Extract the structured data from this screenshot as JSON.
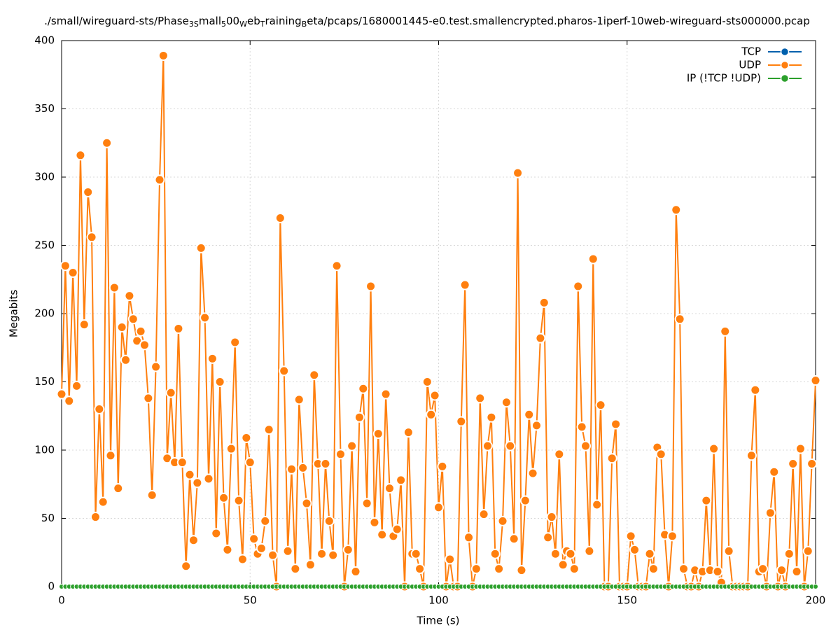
{
  "chart_data": {
    "type": "line",
    "title_parts": [
      "./small/wireguard-sts/Phase",
      "3S",
      "mall",
      "5",
      "00",
      "W",
      "eb",
      "T",
      "raining",
      "B",
      "eta/pcaps/1680001445-e0.test.smallencrypted.pharos-1iperf-10web-wireguard-sts000000.pcap"
    ],
    "xlabel": "Time (s)",
    "ylabel": "Megabits",
    "xlim": [
      0,
      200
    ],
    "xticks": [
      0,
      50,
      100,
      150,
      200
    ],
    "ylim": [
      0,
      400
    ],
    "yticks": [
      0,
      50,
      100,
      150,
      200,
      250,
      300,
      350,
      400
    ],
    "grid": true,
    "legend": "top-right",
    "x": [
      0,
      1,
      2,
      3,
      4,
      5,
      6,
      7,
      8,
      9,
      10,
      11,
      12,
      13,
      14,
      15,
      16,
      17,
      18,
      19,
      20,
      21,
      22,
      23,
      24,
      25,
      26,
      27,
      28,
      29,
      30,
      31,
      32,
      33,
      34,
      35,
      36,
      37,
      38,
      39,
      40,
      41,
      42,
      43,
      44,
      45,
      46,
      47,
      48,
      49,
      50,
      51,
      52,
      53,
      54,
      55,
      56,
      57,
      58,
      59,
      60,
      61,
      62,
      63,
      64,
      65,
      66,
      67,
      68,
      69,
      70,
      71,
      72,
      73,
      74,
      75,
      76,
      77,
      78,
      79,
      80,
      81,
      82,
      83,
      84,
      85,
      86,
      87,
      88,
      89,
      90,
      91,
      92,
      93,
      94,
      95,
      96,
      97,
      98,
      99,
      100,
      101,
      102,
      103,
      104,
      105,
      106,
      107,
      108,
      109,
      110,
      111,
      112,
      113,
      114,
      115,
      116,
      117,
      118,
      119,
      120,
      121,
      122,
      123,
      124,
      125,
      126,
      127,
      128,
      129,
      130,
      131,
      132,
      133,
      134,
      135,
      136,
      137,
      138,
      139,
      140,
      141,
      142,
      143,
      144,
      145,
      146,
      147,
      148,
      149,
      150,
      151,
      152,
      153,
      154,
      155,
      156,
      157,
      158,
      159,
      160,
      161,
      162,
      163,
      164,
      165,
      166,
      167,
      168,
      169,
      170,
      171,
      172,
      173,
      174,
      175,
      176,
      177,
      178,
      179,
      180,
      181,
      182,
      183,
      184,
      185,
      186,
      187,
      188,
      189,
      190,
      191,
      192,
      193,
      194,
      195,
      196,
      197,
      198,
      199,
      200
    ],
    "series": [
      {
        "name": "TCP",
        "color": "#0060ad",
        "values": [
          0,
          0,
          0,
          0,
          0,
          0,
          0,
          0,
          0,
          0,
          0,
          0,
          0,
          0,
          0,
          0,
          0,
          0,
          0,
          0,
          0,
          0,
          0,
          0,
          0,
          0,
          0,
          0,
          0,
          0,
          0,
          0,
          0,
          0,
          0,
          0,
          0,
          0,
          0,
          0,
          0,
          0,
          0,
          0,
          0,
          0,
          0,
          0,
          0,
          0,
          0,
          0,
          0,
          0,
          0,
          0,
          0,
          0,
          0,
          0,
          0,
          0,
          0,
          0,
          0,
          0,
          0,
          0,
          0,
          0,
          0,
          0,
          0,
          0,
          0,
          0,
          0,
          0,
          0,
          0,
          0,
          0,
          0,
          0,
          0,
          0,
          0,
          0,
          0,
          0,
          0,
          0,
          0,
          0,
          0,
          0,
          0,
          0,
          0,
          0,
          0,
          0,
          0,
          0,
          0,
          0,
          0,
          0,
          0,
          0,
          0,
          0,
          0,
          0,
          0,
          0,
          0,
          0,
          0,
          0,
          0,
          0,
          0,
          0,
          0,
          0,
          0,
          0,
          0,
          0,
          0,
          0,
          0,
          0,
          0,
          0,
          0,
          0,
          0,
          0,
          0,
          0,
          0,
          0,
          0,
          0,
          0,
          0,
          0,
          0,
          0,
          0,
          0,
          0,
          0,
          0,
          0,
          0,
          0,
          0,
          0,
          0,
          0,
          0,
          0,
          0,
          0,
          0,
          0,
          0,
          0,
          0,
          0,
          0,
          0,
          0,
          0,
          0,
          0,
          0,
          0,
          0,
          0,
          0,
          0,
          0,
          0,
          0,
          0,
          0,
          0,
          0,
          0,
          0,
          0,
          0,
          0,
          0,
          0,
          0,
          0
        ]
      },
      {
        "name": "UDP",
        "color": "#ff7f0e",
        "values": [
          141,
          235,
          136,
          230,
          147,
          316,
          192,
          289,
          256,
          51,
          130,
          62,
          325,
          96,
          219,
          72,
          190,
          166,
          213,
          196,
          180,
          187,
          177,
          138,
          67,
          161,
          298,
          389,
          94,
          142,
          91,
          189,
          91,
          15,
          82,
          34,
          76,
          248,
          197,
          79,
          167,
          39,
          150,
          65,
          27,
          101,
          179,
          63,
          20,
          109,
          91,
          35,
          24,
          28,
          48,
          115,
          23,
          0,
          270,
          158,
          26,
          86,
          13,
          137,
          87,
          61,
          16,
          155,
          90,
          24,
          90,
          48,
          23,
          235,
          97,
          0,
          27,
          103,
          11,
          124,
          145,
          61,
          220,
          47,
          112,
          38,
          141,
          72,
          37,
          42,
          78,
          0,
          113,
          24,
          24,
          13,
          0,
          150,
          126,
          140,
          58,
          88,
          0,
          20,
          0,
          0,
          121,
          221,
          36,
          0,
          13,
          138,
          53,
          103,
          124,
          24,
          13,
          48,
          135,
          103,
          35,
          303,
          12,
          63,
          126,
          83,
          118,
          182,
          208,
          36,
          51,
          24,
          97,
          16,
          26,
          24,
          13,
          220,
          117,
          103,
          26,
          240,
          60,
          133,
          0,
          0,
          94,
          119,
          0,
          0,
          0,
          37,
          27,
          0,
          0,
          0,
          24,
          13,
          102,
          97,
          38,
          0,
          37,
          276,
          196,
          13,
          0,
          0,
          12,
          0,
          11,
          63,
          12,
          101,
          11,
          3,
          187,
          26,
          0,
          0,
          0,
          0,
          0,
          96,
          144,
          11,
          13,
          0,
          54,
          84,
          0,
          12,
          0,
          24,
          90,
          11,
          101,
          0,
          26,
          90,
          151
        ]
      },
      {
        "name": "IP (!TCP  !UDP)",
        "color": "#2ca02c",
        "values": [
          0,
          0,
          0,
          0,
          0,
          0,
          0,
          0,
          0,
          0,
          0,
          0,
          0,
          0,
          0,
          0,
          0,
          0,
          0,
          0,
          0,
          0,
          0,
          0,
          0,
          0,
          0,
          0,
          0,
          0,
          0,
          0,
          0,
          0,
          0,
          0,
          0,
          0,
          0,
          0,
          0,
          0,
          0,
          0,
          0,
          0,
          0,
          0,
          0,
          0,
          0,
          0,
          0,
          0,
          0,
          0,
          0,
          0,
          0,
          0,
          0,
          0,
          0,
          0,
          0,
          0,
          0,
          0,
          0,
          0,
          0,
          0,
          0,
          0,
          0,
          0,
          0,
          0,
          0,
          0,
          0,
          0,
          0,
          0,
          0,
          0,
          0,
          0,
          0,
          0,
          0,
          0,
          0,
          0,
          0,
          0,
          0,
          0,
          0,
          0,
          0,
          0,
          0,
          0,
          0,
          0,
          0,
          0,
          0,
          0,
          0,
          0,
          0,
          0,
          0,
          0,
          0,
          0,
          0,
          0,
          0,
          0,
          0,
          0,
          0,
          0,
          0,
          0,
          0,
          0,
          0,
          0,
          0,
          0,
          0,
          0,
          0,
          0,
          0,
          0,
          0,
          0,
          0,
          0,
          0,
          0,
          0,
          0,
          0,
          0,
          0,
          0,
          0,
          0,
          0,
          0,
          0,
          0,
          0,
          0,
          0,
          0,
          0,
          0,
          0,
          0,
          0,
          0,
          0,
          0,
          0,
          0,
          0,
          0,
          0,
          0,
          0,
          0,
          0,
          0,
          0,
          0,
          0,
          0,
          0,
          0,
          0,
          0,
          0,
          0,
          0,
          0,
          0,
          0,
          0,
          0,
          0,
          0,
          0,
          0,
          0
        ]
      }
    ]
  }
}
